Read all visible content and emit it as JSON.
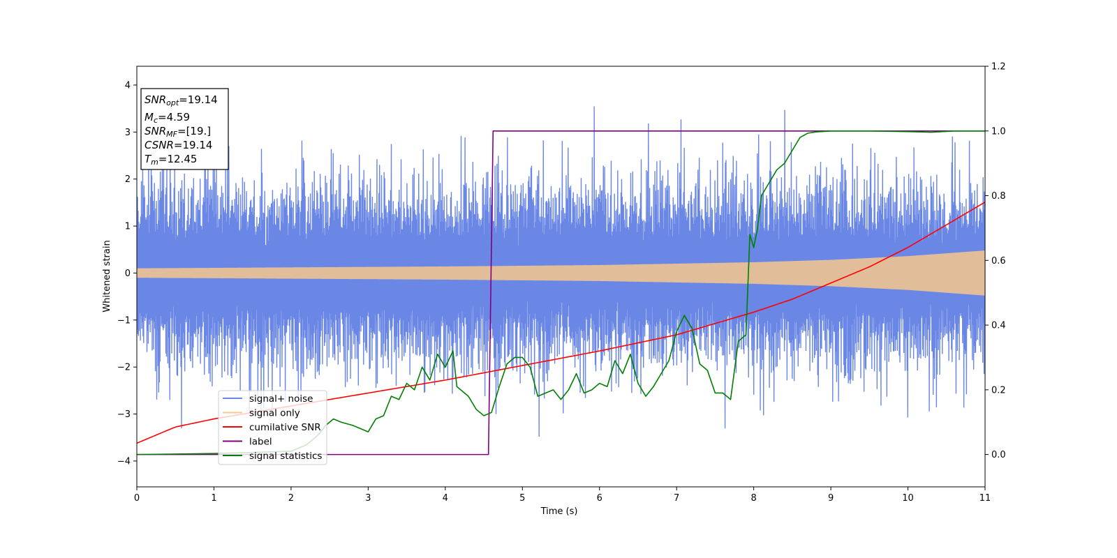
{
  "chart_data": {
    "type": "line",
    "xlabel": "Time (s)",
    "ylabel": "Whitened strain",
    "xlim": [
      0,
      11
    ],
    "ylim": [
      -4.55,
      4.4
    ],
    "y2lim": [
      -0.1,
      1.2
    ],
    "x_ticks": [
      0,
      1,
      2,
      3,
      4,
      5,
      6,
      7,
      8,
      9,
      10,
      11
    ],
    "y_ticks": [
      -4,
      -3,
      -2,
      -1,
      0,
      1,
      2,
      3,
      4
    ],
    "y2_ticks": [
      0.0,
      0.2,
      0.4,
      0.6,
      0.8,
      1.0,
      1.2
    ],
    "x_tick_labels": [
      "0",
      "1",
      "2",
      "3",
      "4",
      "5",
      "6",
      "7",
      "8",
      "9",
      "10",
      "11"
    ],
    "y_tick_labels": [
      "−4",
      "−3",
      "−2",
      "−1",
      "0",
      "1",
      "2",
      "3",
      "4"
    ],
    "y2_tick_labels": [
      "0.0",
      "0.2",
      "0.4",
      "0.6",
      "0.8",
      "1.0",
      "1.2"
    ],
    "grid": false,
    "legend_position": "lower-left",
    "series": [
      {
        "name": "signal+ noise",
        "axis": "left",
        "color": "#6a87e6",
        "noise_band": {
          "typical_range": [
            -1.7,
            1.7
          ],
          "peak_range": [
            -4.15,
            4.0
          ]
        }
      },
      {
        "name": "signal only",
        "axis": "left",
        "color": "#f7c78c",
        "envelope": {
          "x": [
            0,
            2,
            4,
            6,
            8,
            9,
            10,
            11
          ],
          "amplitude": [
            0.1,
            0.12,
            0.14,
            0.17,
            0.23,
            0.28,
            0.36,
            0.48
          ]
        }
      },
      {
        "name": "cumilative SNR",
        "axis": "right",
        "color": "#ff0000",
        "x": [
          0,
          0.5,
          1,
          2,
          3,
          4,
          5,
          6,
          7,
          8,
          8.5,
          9,
          9.5,
          10,
          10.5,
          11
        ],
        "y": [
          0.035,
          0.085,
          0.11,
          0.15,
          0.19,
          0.23,
          0.275,
          0.32,
          0.37,
          0.44,
          0.48,
          0.53,
          0.58,
          0.64,
          0.71,
          0.78
        ]
      },
      {
        "name": "label",
        "axis": "right",
        "color": "#800080",
        "x": [
          0,
          4.56,
          4.62,
          11
        ],
        "y": [
          0,
          0,
          1,
          1
        ]
      },
      {
        "name": "signal statistics",
        "axis": "right",
        "color": "#007f00",
        "x": [
          0,
          1,
          2,
          2.2,
          2.35,
          2.45,
          2.55,
          2.65,
          2.8,
          2.9,
          3.0,
          3.1,
          3.2,
          3.3,
          3.4,
          3.5,
          3.6,
          3.7,
          3.8,
          3.9,
          4.0,
          4.1,
          4.15,
          4.2,
          4.3,
          4.4,
          4.5,
          4.6,
          4.7,
          4.8,
          4.9,
          5.0,
          5.1,
          5.2,
          5.3,
          5.4,
          5.5,
          5.6,
          5.7,
          5.8,
          5.9,
          6.0,
          6.1,
          6.2,
          6.3,
          6.4,
          6.5,
          6.6,
          6.7,
          6.8,
          6.9,
          7.0,
          7.1,
          7.2,
          7.3,
          7.4,
          7.5,
          7.6,
          7.7,
          7.8,
          7.9,
          7.95,
          8.0,
          8.05,
          8.1,
          8.2,
          8.3,
          8.4,
          8.5,
          8.6,
          8.7,
          8.8,
          9.0,
          9.2,
          9.5,
          10.0,
          10.3,
          10.6,
          11.0
        ],
        "y": [
          0.0,
          0.003,
          0.01,
          0.03,
          0.06,
          0.09,
          0.11,
          0.1,
          0.09,
          0.08,
          0.07,
          0.11,
          0.12,
          0.18,
          0.17,
          0.22,
          0.2,
          0.27,
          0.23,
          0.31,
          0.27,
          0.32,
          0.21,
          0.2,
          0.18,
          0.14,
          0.12,
          0.13,
          0.21,
          0.28,
          0.3,
          0.3,
          0.27,
          0.18,
          0.19,
          0.2,
          0.17,
          0.2,
          0.25,
          0.19,
          0.2,
          0.22,
          0.21,
          0.29,
          0.25,
          0.31,
          0.22,
          0.18,
          0.21,
          0.25,
          0.29,
          0.38,
          0.43,
          0.39,
          0.28,
          0.26,
          0.19,
          0.19,
          0.17,
          0.35,
          0.37,
          0.68,
          0.64,
          0.7,
          0.8,
          0.84,
          0.88,
          0.9,
          0.94,
          0.98,
          0.993,
          0.997,
          1.0,
          1.0,
          1.0,
          0.998,
          0.996,
          1.0,
          1.0
        ]
      }
    ],
    "annotation": [
      {
        "var": "SNR",
        "sub": "opt",
        "value": "=19.14"
      },
      {
        "var": "M",
        "sub": "c",
        "value": "=4.59"
      },
      {
        "var": "SNR",
        "sub": "MF",
        "value": "=[19.]"
      },
      {
        "var": "CSNR",
        "sub": "",
        "value": "=19.14"
      },
      {
        "var": "T",
        "sub": "m",
        "value": "=12.45"
      }
    ]
  }
}
